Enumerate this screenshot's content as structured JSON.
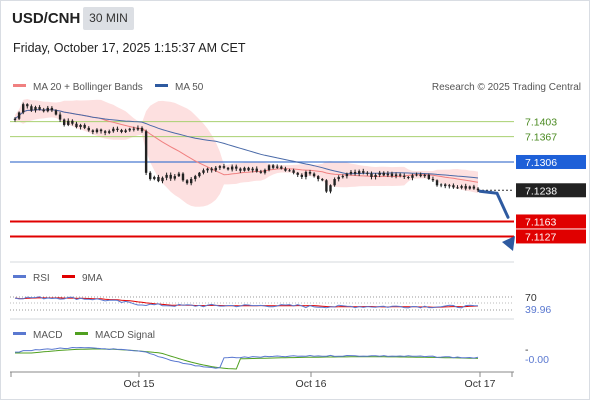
{
  "header": {
    "symbol": "USD/CNH",
    "timeframe": "30 MIN",
    "datetime": "Friday, October 17, 2025 1:15:37 AM CET"
  },
  "legend": {
    "ma20_bb": "MA 20 + Bollinger Bands",
    "ma50": "MA 50",
    "rsi": "RSI",
    "rsi_ma": "9MA",
    "macd": "MACD",
    "macd_signal": "MACD Signal"
  },
  "credit": "Research © 2025 Trading Central",
  "colors": {
    "candle": "#222222",
    "bollinger_fill": "#fde0e0",
    "ma20": "#f08080",
    "ma50": "#4a6aa8",
    "resistance": "#a8d070",
    "pivot": "#4a7ad0",
    "support": "#e00000",
    "last_price_bg": "#222222",
    "rsi": "#5a78d0",
    "rsi_ma": "#e00000",
    "macd": "#5a78d0",
    "macd_signal": "#50a020"
  },
  "chart_data": {
    "type": "candlestick",
    "y_axis": {
      "min": 7.108,
      "max": 7.1455
    },
    "x_ticks": [
      "Oct 15",
      "Oct 16",
      "Oct 17"
    ],
    "levels": [
      {
        "name": "resistance-2",
        "value": 7.1403,
        "label": "7.1403",
        "kind": "resistance"
      },
      {
        "name": "resistance-1",
        "value": 7.1367,
        "label": "7.1367",
        "kind": "resistance"
      },
      {
        "name": "pivot",
        "value": 7.1306,
        "label": "7.1306",
        "kind": "pivot"
      },
      {
        "name": "last-price",
        "value": 7.1238,
        "label": "7.1238",
        "kind": "last"
      },
      {
        "name": "support-1",
        "value": 7.1163,
        "label": "7.1163",
        "kind": "support"
      },
      {
        "name": "support-2",
        "value": 7.1127,
        "label": "7.1127",
        "kind": "support"
      }
    ],
    "close": [
      7.141,
      7.1425,
      7.1445,
      7.144,
      7.143,
      7.1438,
      7.1432,
      7.1428,
      7.1436,
      7.143,
      7.142,
      7.1408,
      7.1395,
      7.1405,
      7.1398,
      7.139,
      7.1395,
      7.1388,
      7.1382,
      7.1378,
      7.1384,
      7.138,
      7.1376,
      7.138,
      7.1386,
      7.1383,
      7.1378,
      7.1382,
      7.1386,
      7.1384,
      7.1388,
      7.138,
      7.128,
      7.1265,
      7.127,
      7.126,
      7.1268,
      7.1275,
      7.1266,
      7.1272,
      7.1278,
      7.1262,
      7.1255,
      7.1265,
      7.1272,
      7.128,
      7.1286,
      7.129,
      7.1286,
      7.1292,
      7.1296,
      7.1292,
      7.1288,
      7.1295,
      7.129,
      7.1285,
      7.1292,
      7.1286,
      7.129,
      7.1283,
      7.128,
      7.1287,
      7.1298,
      7.1292,
      7.1295,
      7.129,
      7.1285,
      7.1286,
      7.128,
      7.1275,
      7.127,
      7.1282,
      7.1278,
      7.1272,
      7.1265,
      7.1262,
      7.1235,
      7.125,
      7.1265,
      7.127,
      7.1272,
      7.1278,
      7.1282,
      7.1278,
      7.1284,
      7.128,
      7.1278,
      7.127,
      7.1275,
      7.128,
      7.1274,
      7.1278,
      7.1272,
      7.1276,
      7.1273,
      7.127,
      7.1268,
      7.1274,
      7.1276,
      7.1272,
      7.1275,
      7.1265,
      7.1262,
      7.125,
      7.1252,
      7.1248,
      7.125,
      7.1245,
      7.1244,
      7.1248,
      7.1242,
      7.1247,
      7.1242,
      7.1238
    ],
    "rsi": {
      "level_label": "70",
      "value_label": "39.96",
      "upper": 70,
      "last": 39.96
    },
    "macd": {
      "value_label": "-0.00",
      "dash_label": "-"
    }
  }
}
